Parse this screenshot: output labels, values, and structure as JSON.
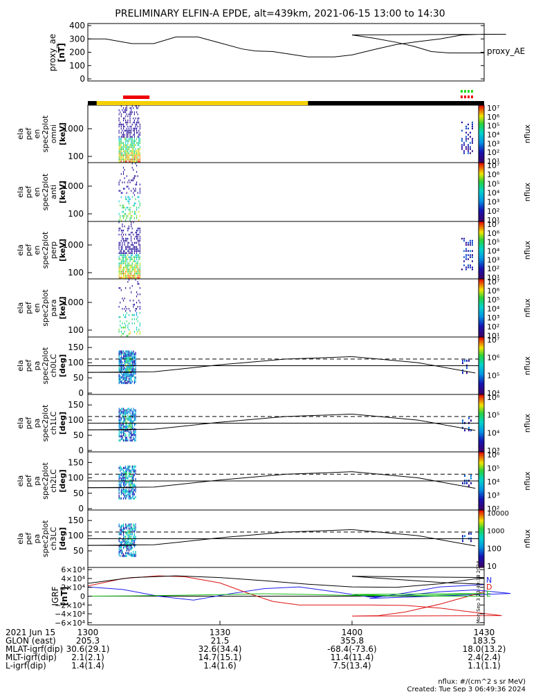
{
  "title": "PRELIMINARY ELFIN-A EPDE, alt=439km, 2021-06-15 13:00 to 14:30",
  "chart_data": [
    {
      "type": "line",
      "ylabel": [
        "proxy_ae",
        "[nT]"
      ],
      "legend": "proxy_AE",
      "ylim": [
        0,
        400
      ],
      "yticks": [
        "400",
        "300",
        "200",
        "100",
        "0"
      ],
      "x": [
        1300,
        1304,
        1310,
        1315,
        1320,
        1325,
        1330,
        1335,
        1338,
        1342,
        1346,
        1350,
        1353,
        1356,
        1360,
        1365,
        1370,
        1375,
        1380,
        1385,
        1390,
        1395,
        1400,
        1405,
        1410,
        1414,
        1418,
        1422,
        1425,
        1428,
        1430
      ],
      "values": [
        300,
        300,
        265,
        265,
        315,
        315,
        270,
        225,
        210,
        205,
        185,
        165,
        165,
        165,
        180,
        220,
        258,
        280,
        300,
        330,
        335,
        335,
        330,
        305,
        275,
        245,
        205,
        195,
        195,
        195,
        195
      ]
    },
    {
      "type": "heatmap",
      "ylabel": [
        "ela",
        "pef",
        "en",
        "spec2plot",
        "omni",
        "[keV]"
      ],
      "yticks": [
        "1000",
        "100"
      ],
      "colorbar": {
        "label": "nflux",
        "ticks": [
          "10¹",
          "10²",
          "10³",
          "10⁴",
          "10⁵",
          "10⁶",
          "10⁷"
        ]
      }
    },
    {
      "type": "heatmap",
      "ylabel": [
        "ela",
        "pef",
        "en",
        "spec2plot",
        "anti",
        "[keV]"
      ],
      "yticks": [
        "1000",
        "100"
      ],
      "colorbar": {
        "label": "nflux",
        "ticks": [
          "10¹",
          "10²",
          "10³",
          "10⁴",
          "10⁵",
          "10⁶",
          "10⁷"
        ]
      }
    },
    {
      "type": "heatmap",
      "ylabel": [
        "ela",
        "pef",
        "en",
        "spec2plot",
        "perp",
        "[keV]"
      ],
      "yticks": [
        "1000",
        "100"
      ],
      "colorbar": {
        "label": "nflux",
        "ticks": [
          "10¹",
          "10²",
          "10³",
          "10⁴",
          "10⁵",
          "10⁶",
          "10⁷"
        ]
      }
    },
    {
      "type": "heatmap",
      "ylabel": [
        "ela",
        "pef",
        "en",
        "spec2plot",
        "para",
        "[keV]"
      ],
      "yticks": [
        "1000",
        "100"
      ],
      "colorbar": {
        "label": "nflux",
        "ticks": [
          "10¹",
          "10²",
          "10³",
          "10⁴",
          "10⁵",
          "10⁶",
          "10⁷"
        ]
      }
    },
    {
      "type": "heatmap",
      "ylabel": [
        "ela",
        "pef",
        "pa",
        "spec2plot",
        "ch0LC",
        "[deg]"
      ],
      "yticks": [
        "150",
        "100",
        "50",
        "0"
      ],
      "ylim": [
        0,
        180
      ],
      "losscone": {
        "x": [
          1300,
          1315,
          1330,
          1345,
          1355,
          1400,
          1415,
          1428
        ],
        "values": [
          68,
          70,
          93,
          112,
          117,
          120,
          100,
          66
        ]
      },
      "antilosscone": {
        "x": [
          1300,
          1430
        ],
        "values": [
          112,
          112
        ]
      },
      "colorbar": {
        "label": "nflux",
        "ticks": [
          "10⁴",
          "10⁵",
          "10⁶",
          "10⁷"
        ]
      }
    },
    {
      "type": "heatmap",
      "ylabel": [
        "ela",
        "pef",
        "pa",
        "spec2plot",
        "ch1LC",
        "[deg]"
      ],
      "yticks": [
        "150",
        "100",
        "50",
        "0"
      ],
      "ylim": [
        0,
        180
      ],
      "losscone": {
        "x": [
          1300,
          1315,
          1330,
          1345,
          1355,
          1400,
          1415,
          1428
        ],
        "values": [
          68,
          70,
          93,
          112,
          117,
          120,
          100,
          66
        ]
      },
      "antilosscone": {
        "x": [
          1300,
          1430
        ],
        "values": [
          112,
          112
        ]
      },
      "colorbar": {
        "label": "nflux",
        "ticks": [
          "10³",
          "10⁴",
          "10⁵",
          "10⁶"
        ]
      }
    },
    {
      "type": "heatmap",
      "ylabel": [
        "ela",
        "pef",
        "pa",
        "spec2plot",
        "ch2LC",
        "[deg]"
      ],
      "yticks": [
        "150",
        "100",
        "50",
        "0"
      ],
      "ylim": [
        0,
        180
      ],
      "losscone": {
        "x": [
          1300,
          1315,
          1330,
          1345,
          1355,
          1400,
          1415,
          1428
        ],
        "values": [
          68,
          70,
          93,
          112,
          117,
          120,
          100,
          66
        ]
      },
      "antilosscone": {
        "x": [
          1300,
          1430
        ],
        "values": [
          112,
          112
        ]
      },
      "colorbar": {
        "label": "nflux",
        "ticks": [
          "10²",
          "10³",
          "10⁴",
          "10⁵",
          "10⁶"
        ]
      }
    },
    {
      "type": "heatmap",
      "ylabel": [
        "ela",
        "pef",
        "pa",
        "spec2plot",
        "ch3LC",
        "[deg]"
      ],
      "yticks": [
        "150",
        "100",
        "50"
      ],
      "ylim": [
        0,
        180
      ],
      "losscone": {
        "x": [
          1300,
          1315,
          1330,
          1345,
          1355,
          1400,
          1415,
          1428
        ],
        "values": [
          68,
          70,
          93,
          112,
          117,
          120,
          100,
          66
        ]
      },
      "antilosscone": {
        "x": [
          1300,
          1430
        ],
        "values": [
          112,
          112
        ]
      },
      "colorbar": {
        "label": "nflux",
        "ticks": [
          "10",
          "100",
          "1000",
          "10000"
        ]
      }
    },
    {
      "type": "line",
      "ylabel": [
        "IGRF",
        "[nT]"
      ],
      "ylim": [
        -65000,
        65000
      ],
      "yticks": [
        "6×10⁴",
        "4×10⁴",
        "2×10⁴",
        "0",
        "−2×10⁴",
        "−4×10⁴",
        "−6×10⁴"
      ],
      "series": [
        {
          "name": "N",
          "color": "#1a1aee",
          "x": [
            1300,
            1308,
            1316,
            1324,
            1332,
            1340,
            1348,
            1356,
            1364,
            1372,
            1380,
            1388,
            1396,
            1404,
            1412,
            1420,
            1430
          ],
          "values": [
            21000,
            15000,
            0,
            -9000,
            5000,
            17000,
            21000,
            10000,
            -2000,
            2000,
            10000,
            14000,
            6000,
            -5000,
            7000,
            21000,
            26000
          ]
        },
        {
          "name": "D",
          "color": "#dd1111",
          "x": [
            1300,
            1308,
            1316,
            1322,
            1330,
            1336,
            1342,
            1348,
            1356,
            1364,
            1372,
            1380,
            1388,
            1394,
            1400,
            1406,
            1412,
            1420,
            1430
          ],
          "values": [
            23000,
            40000,
            46000,
            44000,
            30000,
            8000,
            -12000,
            -20000,
            -20000,
            -20000,
            -21000,
            -27000,
            -37000,
            -44000,
            -45000,
            -44000,
            -36000,
            -18000,
            10000
          ]
        },
        {
          "name": "E",
          "color": "#11bb11",
          "x": [
            1300,
            1310,
            1320,
            1330,
            1340,
            1350,
            1360,
            1370,
            1380,
            1390,
            1400,
            1410,
            1420,
            1430
          ],
          "values": [
            0,
            600,
            2000,
            3500,
            5500,
            4000,
            1500,
            500,
            2500,
            6000,
            4000,
            1000,
            0,
            0
          ]
        },
        {
          "name": "",
          "color": "#000000",
          "x": [
            1300,
            1310,
            1320,
            1330,
            1340,
            1350,
            1360,
            1370,
            1380,
            1390,
            1400,
            1410,
            1420,
            1430
          ],
          "values": [
            29000,
            42000,
            46000,
            42000,
            35000,
            27000,
            21000,
            20000,
            28000,
            42000,
            45000,
            38000,
            31000,
            27000
          ]
        }
      ],
      "legend_labels": [
        "N",
        "D",
        "E"
      ]
    }
  ],
  "xaxis": {
    "date_label": "2021 Jun 15",
    "times": [
      "1300",
      "1330",
      "1400",
      "1430"
    ]
  },
  "ephemeris": [
    {
      "label": "GLON (east)",
      "values": [
        "205.3",
        "21.5",
        "355.8",
        "183.5"
      ]
    },
    {
      "label": "MLAT-igrf(dip)",
      "values": [
        "30.6(29.1)",
        "32.6(34.4)",
        "-68.4(-73.6)",
        "18.0(13.2)"
      ]
    },
    {
      "label": "MLT-igrf(dip)",
      "values": [
        "2.1(2.1)",
        "14.7(15.1)",
        "11.4(11.4)",
        "2.4(2.4)"
      ]
    },
    {
      "label": "L-igrf(dip)",
      "values": [
        "1.4(1.4)",
        "1.4(1.6)",
        "7.5(13.4)",
        "1.1(1.1)"
      ]
    }
  ],
  "footer": {
    "units": "nflux: #/(cm^2 s sr MeV)",
    "created": "Created: Tue Sep  3 06:49:36 2024",
    "side_stamp": "Mon Sep  3 23:49:38 2024"
  },
  "colors": {
    "yellow": "#f5d000",
    "red": "#ee0000",
    "green": "#22dd22",
    "black": "#000000"
  }
}
